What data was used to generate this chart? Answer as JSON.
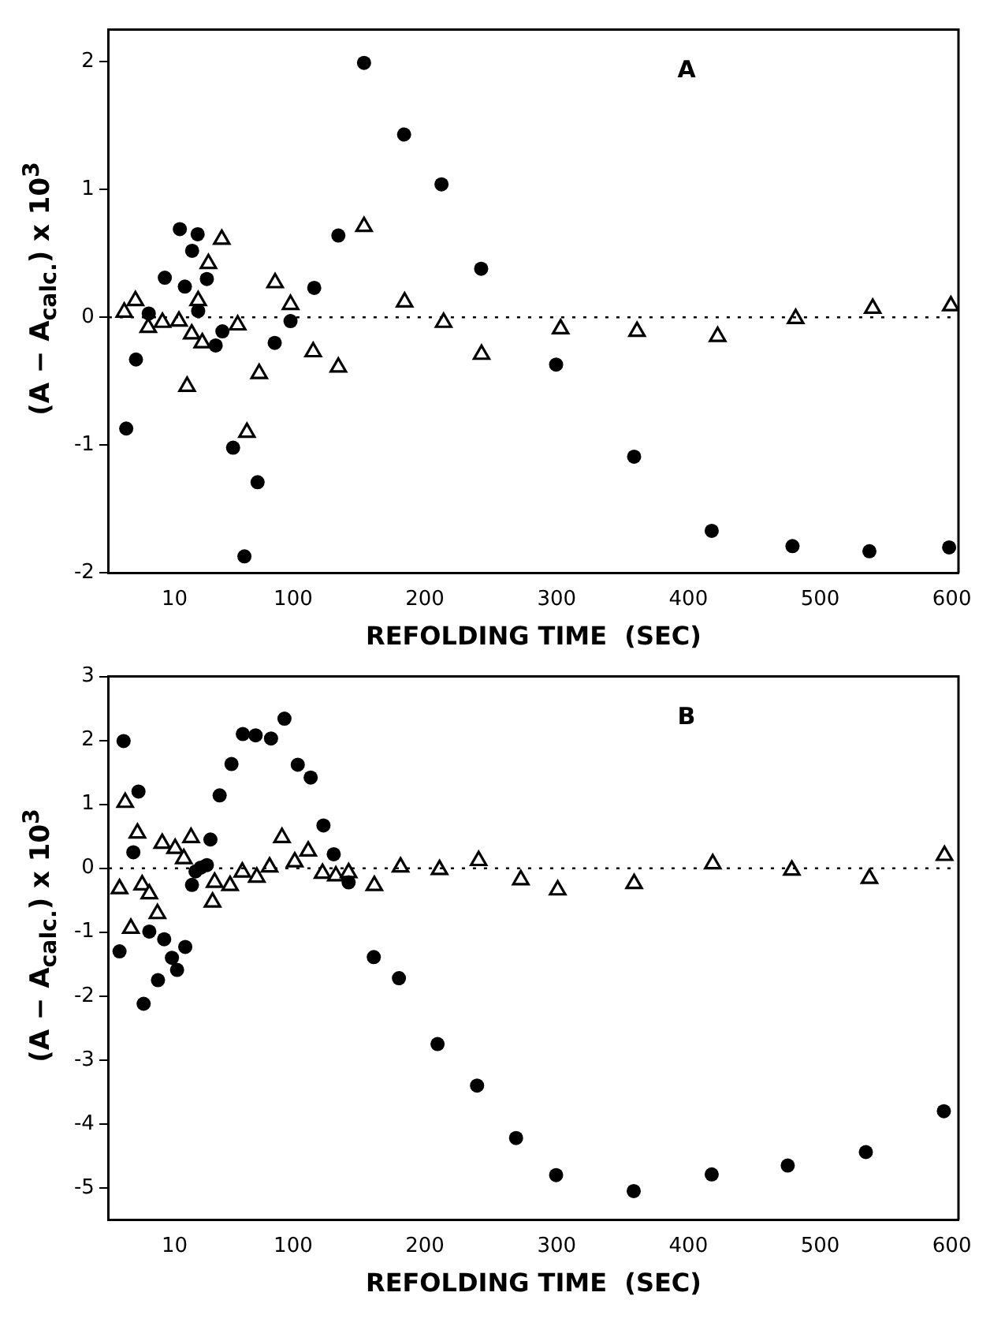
{
  "chart_data": [
    {
      "type": "scatter",
      "xlabel": "REFOLDING TIME  (SEC)",
      "ylabel": "(A − A$_{calc.}$)  x 10$^{3}$",
      "annotations": [
        "A"
      ],
      "xlim": [
        -40,
        605
      ],
      "xticks": [
        10,
        100,
        200,
        300,
        400,
        500,
        600
      ],
      "ylim": [
        -2,
        2.25
      ],
      "yticks": [
        -2,
        -1,
        0,
        1,
        2
      ],
      "grid": false,
      "legend": false,
      "ref_lines": [
        {
          "axis": "y",
          "value": 0,
          "line_style": "dotted",
          "color": "#000000"
        }
      ],
      "series": [
        {
          "color": "#000000",
          "marker": "circle",
          "x": [
            -26.7,
            -19.3,
            -9.6,
            2.6,
            14,
            17.8,
            23.3,
            27.5,
            27.9,
            34.5,
            41.2,
            46.3,
            54.4,
            63,
            73,
            86,
            98,
            116,
            134.3,
            153.8,
            184.2,
            212.6,
            242.7,
            299.6,
            358.8,
            417.7,
            479,
            537.4,
            597.9
          ],
          "values": [
            -0.87,
            -0.33,
            0.03,
            0.31,
            0.69,
            0.24,
            0.52,
            0.65,
            0.05,
            0.3,
            -0.22,
            -0.11,
            -1.02,
            -1.87,
            -1.29,
            -0.2,
            -0.03,
            0.23,
            0.64,
            1.99,
            1.43,
            1.04,
            0.38,
            -0.37,
            -1.09,
            -1.67,
            -1.79,
            -1.83,
            -1.8
          ]
        },
        {
          "color": "#000000",
          "marker": "triangle",
          "x": [
            -28.2,
            -19.7,
            -10,
            0.8,
            13.3,
            19.5,
            23,
            27.9,
            31,
            35.7,
            45.8,
            57.9,
            64.9,
            74.2,
            86.3,
            98,
            115.2,
            134.3,
            153.8,
            184.6,
            214.2,
            243,
            303,
            361,
            422.2,
            481.4,
            539.9,
            599.2
          ],
          "values": [
            0.04,
            0.13,
            -0.08,
            -0.04,
            -0.03,
            -0.54,
            -0.13,
            0.13,
            -0.2,
            0.42,
            0.61,
            -0.06,
            -0.9,
            -0.44,
            0.27,
            0.1,
            -0.27,
            -0.39,
            0.71,
            0.12,
            -0.04,
            -0.29,
            -0.09,
            -0.11,
            -0.15,
            -0.01,
            0.07,
            0.09
          ]
        }
      ]
    },
    {
      "type": "scatter",
      "xlabel": "REFOLDING TIME  (SEC)",
      "ylabel": "(A − A$_{calc.}$)  x 10$^{3}$",
      "annotations": [
        "B"
      ],
      "xlim": [
        -40,
        605
      ],
      "xticks": [
        10,
        100,
        200,
        300,
        400,
        500,
        600
      ],
      "ylim": [
        -5.5,
        3
      ],
      "yticks": [
        -5,
        -4,
        -3,
        -2,
        -1,
        0,
        1,
        2,
        3
      ],
      "grid": false,
      "legend": false,
      "ref_lines": [
        {
          "axis": "y",
          "value": 0,
          "line_style": "dotted",
          "color": "#000000"
        }
      ],
      "series": [
        {
          "color": "#000000",
          "marker": "circle",
          "x": [
            -31.8,
            -28.7,
            -21.3,
            -17.4,
            -13.5,
            -9.2,
            -2.6,
            2.1,
            8,
            11.9,
            18.1,
            23.2,
            25.9,
            29.8,
            34.5,
            37.2,
            44.2,
            53.2,
            61.8,
            71.5,
            83.2,
            93.4,
            103.5,
            113.3,
            123,
            130.8,
            142.1,
            161.2,
            180.3,
            209.6,
            239.6,
            269.2,
            299.6,
            358.5,
            417.7,
            475.4,
            534.7,
            593.9
          ],
          "values": [
            -1.3,
            1.99,
            0.25,
            1.2,
            -2.12,
            -0.99,
            -1.75,
            -1.11,
            -1.4,
            -1.59,
            -1.23,
            -0.26,
            -0.05,
            0.01,
            0.05,
            0.45,
            1.14,
            1.63,
            2.1,
            2.08,
            2.03,
            2.34,
            1.62,
            1.42,
            0.67,
            0.22,
            -0.22,
            -1.39,
            -1.72,
            -2.75,
            -3.4,
            -4.22,
            -4.8,
            -5.05,
            -4.79,
            -4.65,
            -4.44,
            -3.8
          ]
        },
        {
          "color": "#000000",
          "marker": "triangle",
          "x": [
            -31.8,
            -27.5,
            -23.2,
            -18.2,
            -14.6,
            -9.2,
            -3,
            0.6,
            10.4,
            17,
            22.5,
            38.8,
            40.4,
            52.1,
            61.4,
            72.4,
            82.1,
            91.5,
            101.2,
            111.4,
            122.3,
            132.4,
            142.1,
            161.6,
            181.5,
            211.1,
            240.8,
            272.8,
            300.8,
            358.8,
            418.5,
            478.5,
            537.4,
            594.4
          ],
          "values": [
            -0.32,
            1.03,
            -0.94,
            0.55,
            -0.26,
            -0.4,
            -0.71,
            0.39,
            0.31,
            0.15,
            0.48,
            -0.53,
            -0.22,
            -0.27,
            -0.06,
            -0.14,
            0.02,
            0.48,
            0.1,
            0.27,
            -0.08,
            -0.12,
            -0.07,
            -0.27,
            0.02,
            -0.02,
            0.12,
            -0.18,
            -0.34,
            -0.24,
            0.07,
            -0.03,
            -0.16,
            0.2
          ]
        }
      ]
    }
  ]
}
